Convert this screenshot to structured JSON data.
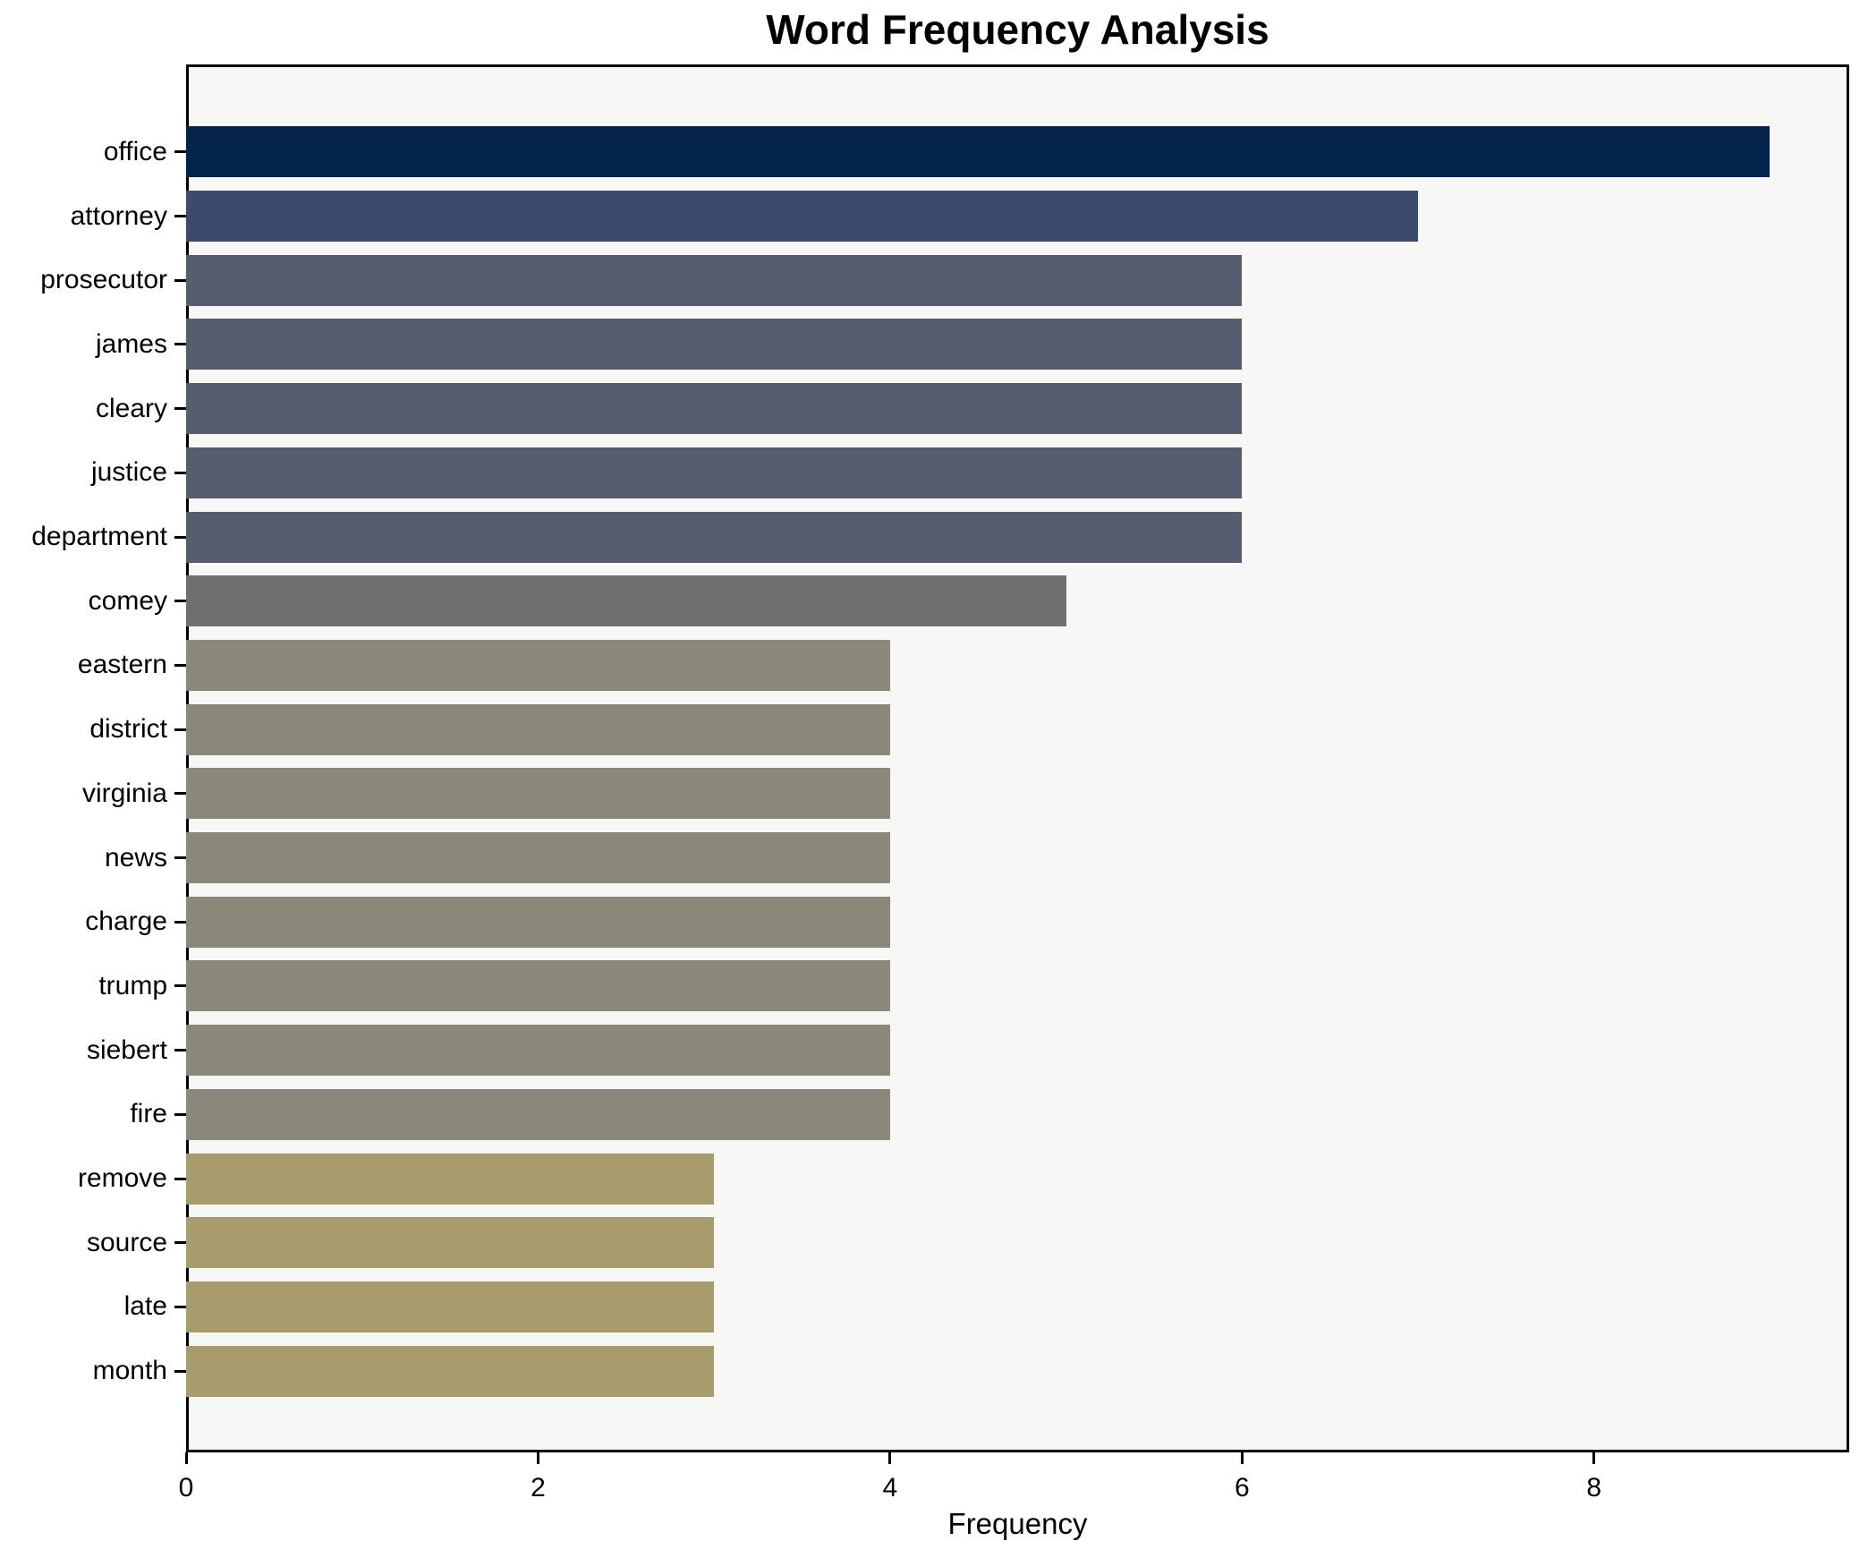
{
  "chart_data": {
    "type": "bar",
    "orientation": "horizontal",
    "title": "Word Frequency Analysis",
    "xlabel": "Frequency",
    "ylabel": "",
    "categories": [
      "office",
      "attorney",
      "prosecutor",
      "james",
      "cleary",
      "justice",
      "department",
      "comey",
      "eastern",
      "district",
      "virginia",
      "news",
      "charge",
      "trump",
      "siebert",
      "fire",
      "remove",
      "source",
      "late",
      "month"
    ],
    "values": [
      9,
      7,
      6,
      6,
      6,
      6,
      6,
      5,
      4,
      4,
      4,
      4,
      4,
      4,
      4,
      4,
      3,
      3,
      3,
      3
    ],
    "bar_colors": [
      "#03234d",
      "#3c4a6e",
      "#575d6e",
      "#575d6e",
      "#575d6e",
      "#575d6e",
      "#575d6e",
      "#6e6f71",
      "#8b877a",
      "#8b877a",
      "#8b877a",
      "#8b877a",
      "#8b877a",
      "#8b877a",
      "#8b877a",
      "#8b877a",
      "#a89c6d",
      "#a89c6d",
      "#a89c6d",
      "#a89c6d"
    ],
    "xticks": [
      0,
      2,
      4,
      6,
      8
    ],
    "xlim": [
      0,
      9.45
    ],
    "grid": false,
    "legend": null,
    "plot_background": "#f7f7f5",
    "figure_background": "#ffffff",
    "axis_color": "#000000"
  }
}
